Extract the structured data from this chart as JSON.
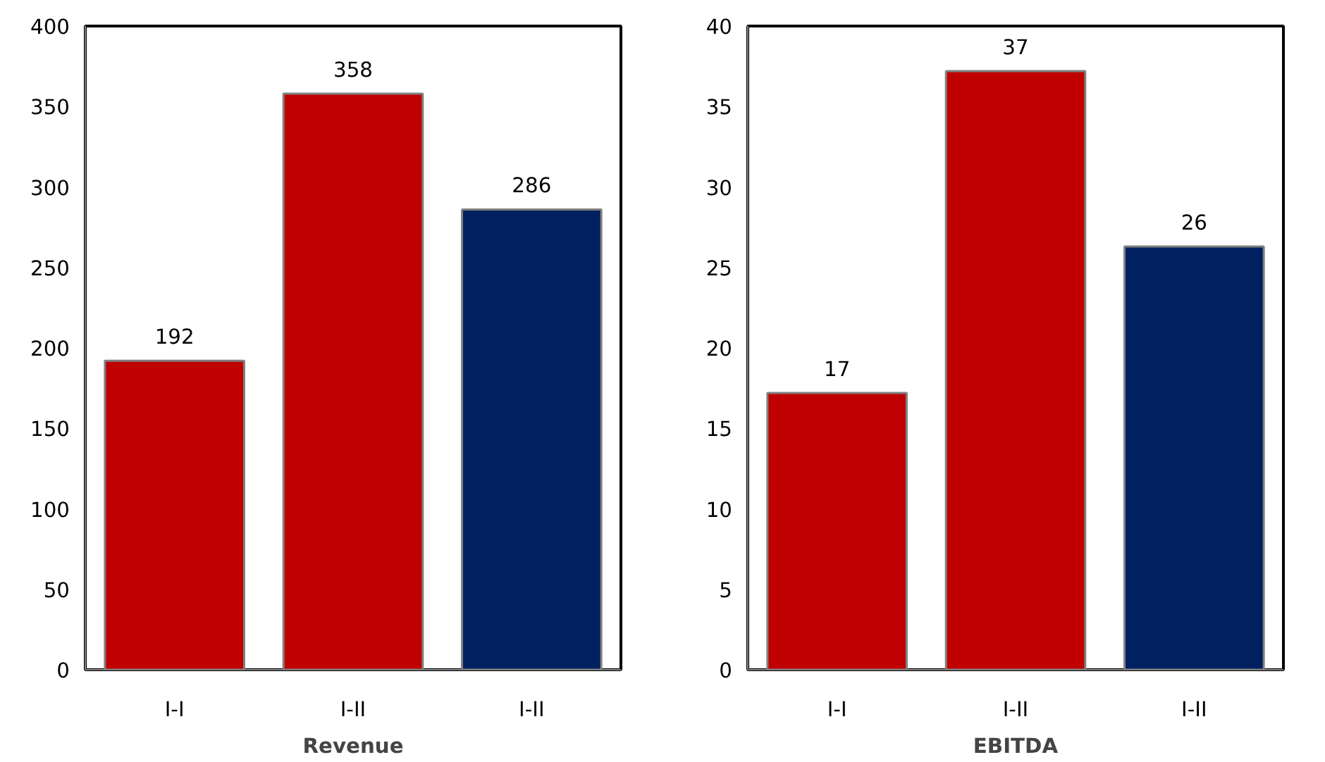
{
  "chart_data": [
    {
      "type": "bar",
      "xlabel": "Revenue",
      "categories": [
        "I-I",
        "I-II",
        "I-II"
      ],
      "values": [
        192,
        358,
        286
      ],
      "colors": [
        "#c00000",
        "#c00000",
        "#002060"
      ],
      "ylim": [
        0,
        400
      ],
      "yticks": [
        0,
        50,
        100,
        150,
        200,
        250,
        300,
        350,
        400
      ],
      "data_labels": true,
      "grid": false
    },
    {
      "type": "bar",
      "xlabel": "EBITDA",
      "categories": [
        "I-I",
        "I-II",
        "I-II"
      ],
      "values": [
        17.2,
        37.2,
        26.3
      ],
      "value_labels": [
        "17",
        "37",
        "26"
      ],
      "colors": [
        "#c00000",
        "#c00000",
        "#002060"
      ],
      "ylim": [
        0,
        40
      ],
      "yticks": [
        0,
        5,
        10,
        15,
        20,
        25,
        30,
        35,
        40
      ],
      "grid": false
    }
  ]
}
